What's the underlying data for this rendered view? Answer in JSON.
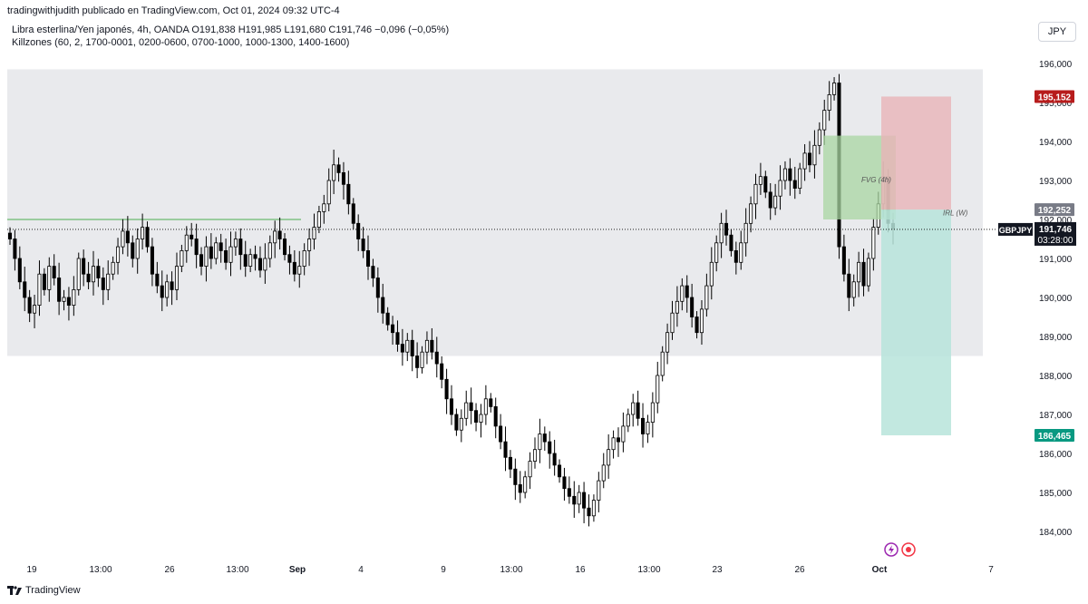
{
  "credit": "tradingwithjudith publicado en TradingView.com, Oct 01, 2024 09:32 UTC-4",
  "legend": {
    "line1": "Libra esterlina/Yen japonés, 4h, OANDA  O191,838  H191,985  L191,680  C191,746  −0,096 (−0,05%)",
    "line2": "Killzones (60, 2, 1700-0001, 0200-0600, 0700-1000, 1000-1300, 1400-1600)"
  },
  "currency_button": "JPY",
  "footer": {
    "brand": "TradingView"
  },
  "colors": {
    "up": "#ffffff",
    "down": "#000000",
    "wick": "#000000",
    "zone": "#e9eaed",
    "stop": "#e8b4b8",
    "target": "#b7e4da",
    "fvg": "#a8d5a2",
    "stop_label": "#b71c1c",
    "target_label": "#089981",
    "price_label": "#131722",
    "irl_label": "#787b86",
    "gridline": "#000000"
  },
  "chart_data": {
    "type": "candlestick",
    "symbol": "GBPJPY",
    "timeframe": "4h",
    "y_axis": {
      "range": [
        183.6,
        196.3
      ],
      "ticks": [
        "184,000",
        "185,000",
        "186,000",
        "187,000",
        "188,000",
        "189,000",
        "190,000",
        "191,000",
        "192,000",
        "193,000",
        "194,000",
        "195,000",
        "196,000"
      ],
      "tick_values": [
        184,
        185,
        186,
        187,
        188,
        189,
        190,
        191,
        192,
        193,
        194,
        195,
        196
      ]
    },
    "x_axis": {
      "ticks": [
        "19",
        "13:00",
        "26",
        "13:00",
        "Sep",
        "4",
        "9",
        "13:00",
        "16",
        "13:00",
        "23",
        "26",
        "Oct",
        "7"
      ],
      "bold": [
        "Sep",
        "Oct"
      ]
    },
    "series_close": [
      191.5,
      191.0,
      190.4,
      190.0,
      189.6,
      189.8,
      190.6,
      190.2,
      190.8,
      190.5,
      189.9,
      190.0,
      189.8,
      190.2,
      191.0,
      190.6,
      190.4,
      190.8,
      190.5,
      190.2,
      190.6,
      190.9,
      191.3,
      191.7,
      191.4,
      191.0,
      191.5,
      191.8,
      191.3,
      190.6,
      190.3,
      190.0,
      190.4,
      190.2,
      190.8,
      191.2,
      191.6,
      191.5,
      191.1,
      190.8,
      191.3,
      191.0,
      191.4,
      191.2,
      190.9,
      191.3,
      191.5,
      191.1,
      190.8,
      191.1,
      191.0,
      190.7,
      191.0,
      191.4,
      191.7,
      191.5,
      191.1,
      190.9,
      190.6,
      190.8,
      191.2,
      191.5,
      191.8,
      192.2,
      192.4,
      193.0,
      193.4,
      193.2,
      192.9,
      192.4,
      191.9,
      191.5,
      191.2,
      190.8,
      190.5,
      190.0,
      189.6,
      189.3,
      189.1,
      188.8,
      188.6,
      188.9,
      188.5,
      188.2,
      188.6,
      188.9,
      188.6,
      188.3,
      187.9,
      187.4,
      187.0,
      186.6,
      186.9,
      187.3,
      187.1,
      186.8,
      187.0,
      187.4,
      187.2,
      186.7,
      186.3,
      185.9,
      185.6,
      185.2,
      185.0,
      185.4,
      185.8,
      186.1,
      186.5,
      186.3,
      186.0,
      185.7,
      185.4,
      185.1,
      184.9,
      184.7,
      185.0,
      184.6,
      184.4,
      184.8,
      185.3,
      185.7,
      186.1,
      186.4,
      186.3,
      186.7,
      187.0,
      187.3,
      186.9,
      186.5,
      186.8,
      187.3,
      188.0,
      188.6,
      189.1,
      189.6,
      189.9,
      190.3,
      190.0,
      189.5,
      189.1,
      189.7,
      190.3,
      190.9,
      191.4,
      191.9,
      191.6,
      191.2,
      190.9,
      191.4,
      191.9,
      192.4,
      192.9,
      193.1,
      192.7,
      192.3,
      192.6,
      193.0,
      193.3,
      193.0,
      192.8,
      193.3,
      193.7,
      193.4,
      193.9,
      194.3,
      194.8,
      195.2,
      195.5,
      191.3,
      190.6,
      190.0,
      190.4,
      190.9,
      190.3,
      191.0,
      191.8,
      192.4,
      193.1,
      191.9,
      191.75
    ],
    "overlays": {
      "range_zone": {
        "top": 195.85,
        "bottom": 188.5
      },
      "prior_level": 192.0,
      "stop_zone": {
        "top": 195.152,
        "bottom": 192.252
      },
      "target_zone": {
        "top": 192.252,
        "bottom": 186.465
      },
      "fvg_zone": {
        "top": 194.15,
        "bottom": 192.0
      },
      "current_price": 191.746
    },
    "annotations": {
      "fvg": "FVG (4h)",
      "irl": "IRL (W)"
    },
    "price_labels": {
      "stop": "195,152",
      "entry": "192,252",
      "current": "191,746",
      "countdown": "03:28:00",
      "target": "186,465",
      "symbol": "GBPJPY"
    }
  }
}
